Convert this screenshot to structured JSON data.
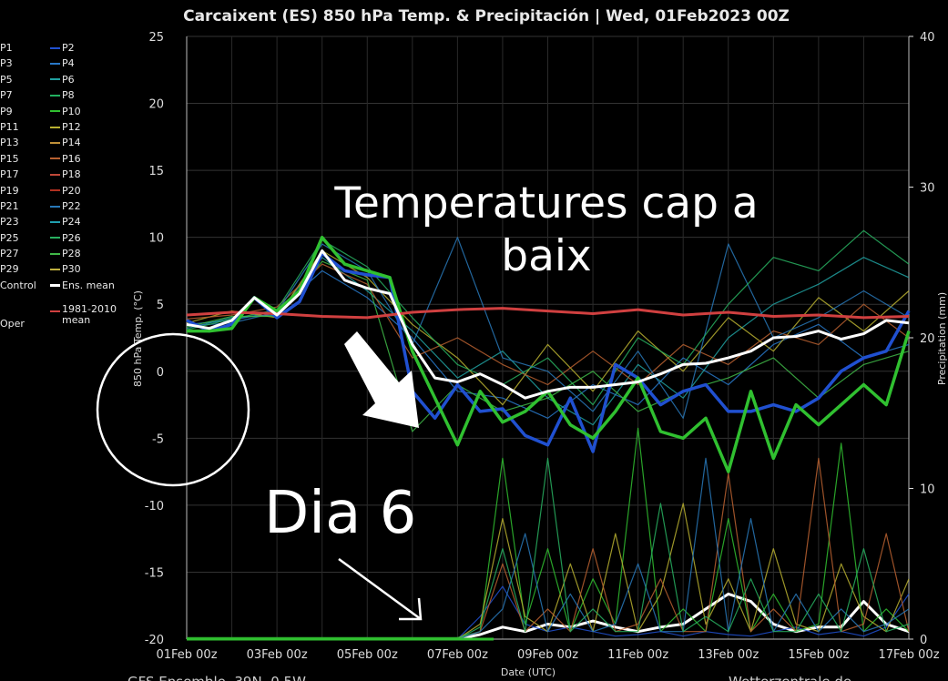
{
  "header": {
    "title": "Carcaixent  (ES)  850 hPa Temp. & Precipitación | Wed, 01Feb2023 00Z"
  },
  "footer": {
    "source_left": "GFS Ensemble, 39N, 0.5W",
    "source_right": "Wetterzentrale.de"
  },
  "legend": {
    "members": [
      {
        "left": "P1",
        "right": "P2",
        "left_color": "#1a3fb0",
        "right_color": "#2050d0"
      },
      {
        "left": "P3",
        "right": "P4",
        "left_color": "#1f64b8",
        "right_color": "#2878c8"
      },
      {
        "left": "P5",
        "right": "P6",
        "left_color": "#1a8a9a",
        "right_color": "#20a0a0"
      },
      {
        "left": "P7",
        "right": "P8",
        "left_color": "#1a9a70",
        "right_color": "#22b060"
      },
      {
        "left": "P9",
        "right": "P10",
        "left_color": "#20b040",
        "right_color": "#30c030"
      },
      {
        "left": "P11",
        "right": "P12",
        "left_color": "#90b030",
        "right_color": "#b8b030"
      },
      {
        "left": "P13",
        "right": "P14",
        "left_color": "#b09030",
        "right_color": "#c09038"
      },
      {
        "left": "P15",
        "right": "P16",
        "left_color": "#b07030",
        "right_color": "#b86030"
      },
      {
        "left": "P17",
        "right": "P18",
        "left_color": "#b04030",
        "right_color": "#c04838"
      },
      {
        "left": "P19",
        "right": "P20",
        "left_color": "#a83020",
        "right_color": "#b03020"
      },
      {
        "left": "P21",
        "right": "P22",
        "left_color": "#2060a0",
        "right_color": "#2878b8"
      },
      {
        "left": "P23",
        "right": "P24",
        "left_color": "#2088a0",
        "right_color": "#20a0b0"
      },
      {
        "left": "P25",
        "right": "P26",
        "left_color": "#20a070",
        "right_color": "#28b060"
      },
      {
        "left": "P27",
        "right": "P28",
        "left_color": "#30a850",
        "right_color": "#40b848"
      },
      {
        "left": "P29",
        "right": "P30",
        "left_color": "#a0b040",
        "right_color": "#c0b040"
      }
    ],
    "control_label": "Control",
    "ens_mean_label": "Ens. mean",
    "climo_label_line1": "1981-2010",
    "climo_label_line2": "mean",
    "oper_label": "Oper",
    "ens_mean_color": "#ffffff",
    "climo_color": "#d04040"
  },
  "annotations": {
    "headline": "Temperatures  cap a baix",
    "headline_line1": "Temperatures  cap a",
    "headline_line2": "baix",
    "dia6": "Dia 6"
  },
  "chart_data": {
    "type": "line",
    "title": "Carcaixent  (ES)  850 hPa Temp. & Precipitación | Wed, 01Feb2023 00Z",
    "xlabel": "Date (UTC)",
    "ylabel": "850 hPa Temp. (°C)",
    "y2label": "Precipitation (mm)",
    "ylim": [
      -20,
      25
    ],
    "y2lim": [
      0,
      40
    ],
    "y_ticks": [
      25,
      20,
      15,
      10,
      5,
      0,
      -5,
      -10,
      -15,
      -20
    ],
    "y2_ticks": [
      40,
      30,
      20,
      10,
      0
    ],
    "x_ticks": [
      "01Feb 00z",
      "03Feb 00z",
      "05Feb 00z",
      "07Feb 00z",
      "09Feb 00z",
      "11Feb 00z",
      "13Feb 00z",
      "15Feb 00z",
      "17Feb 00z"
    ],
    "xlim_days": [
      0,
      16
    ],
    "grid": true,
    "series": [
      {
        "name": "1981-2010 mean",
        "color": "#d04040",
        "x": [
          0,
          1,
          2,
          3,
          4,
          5,
          6,
          7,
          8,
          9,
          10,
          11,
          12,
          13,
          14,
          15,
          16
        ],
        "y": [
          4.2,
          4.4,
          4.3,
          4.1,
          4.0,
          4.4,
          4.6,
          4.7,
          4.5,
          4.3,
          4.6,
          4.2,
          4.4,
          4.1,
          4.2,
          4.0,
          4.1
        ]
      },
      {
        "name": "Ens. mean",
        "color": "#ffffff",
        "x": [
          0,
          0.5,
          1,
          1.5,
          2,
          2.5,
          3,
          3.5,
          4,
          4.5,
          5,
          5.5,
          6,
          6.5,
          7,
          7.5,
          8,
          8.5,
          9,
          9.5,
          10,
          10.5,
          11,
          11.5,
          12,
          12.5,
          13,
          13.5,
          14,
          14.5,
          15,
          15.5,
          16
        ],
        "y": [
          3.5,
          3.2,
          3.8,
          5.5,
          4.2,
          5.8,
          9.0,
          6.8,
          6.2,
          5.8,
          2.0,
          -0.5,
          -0.8,
          -0.2,
          -1.0,
          -2.0,
          -1.5,
          -1.2,
          -1.2,
          -1.0,
          -0.8,
          -0.2,
          0.5,
          0.6,
          1.0,
          1.5,
          2.5,
          2.6,
          3.0,
          2.4,
          2.8,
          3.8,
          3.6
        ]
      },
      {
        "name": "P2",
        "color": "#2050d0",
        "x": [
          0,
          0.5,
          1,
          1.5,
          2,
          2.5,
          3,
          3.5,
          4,
          4.5,
          5,
          5.5,
          6,
          6.5,
          7,
          7.5,
          8,
          8.5,
          9,
          9.5,
          10,
          10.5,
          11,
          11.5,
          12,
          12.5,
          13,
          13.5,
          14,
          14.5,
          15,
          15.5,
          16
        ],
        "y": [
          3.8,
          3.0,
          3.5,
          5.5,
          4.0,
          5.2,
          8.8,
          7.5,
          7.2,
          7.0,
          -1.5,
          -3.5,
          -1.0,
          -3.0,
          -2.8,
          -4.8,
          -5.5,
          -2.0,
          -6.0,
          0.5,
          -0.5,
          -2.5,
          -1.5,
          -1.0,
          -3.0,
          -3.0,
          -2.5,
          -3.0,
          -2.0,
          0.0,
          1.0,
          1.5,
          4.5
        ]
      },
      {
        "name": "P10",
        "color": "#30c030",
        "x": [
          0,
          0.5,
          1,
          1.5,
          2,
          2.5,
          3,
          3.5,
          4,
          4.5,
          5,
          5.5,
          6,
          6.5,
          7,
          7.5,
          8,
          8.5,
          9,
          9.5,
          10,
          10.5,
          11,
          11.5,
          12,
          12.5,
          13,
          13.5,
          14,
          14.5,
          15,
          15.5,
          16
        ],
        "y": [
          3.0,
          3.0,
          3.2,
          5.5,
          4.5,
          6.0,
          10.0,
          8.0,
          7.5,
          7.0,
          1.5,
          -2.0,
          -5.5,
          -1.5,
          -3.8,
          -3.0,
          -1.5,
          -4.0,
          -5.0,
          -3.0,
          -0.5,
          -4.5,
          -5.0,
          -3.5,
          -7.5,
          -1.5,
          -6.5,
          -2.5,
          -4.0,
          -2.5,
          -1.0,
          -2.5,
          3.0
        ]
      },
      {
        "name": "P4",
        "color": "#2878c8",
        "x": [
          0,
          1,
          2,
          3,
          4,
          5,
          6,
          7,
          8,
          9,
          10,
          11,
          12,
          13,
          14,
          15,
          16
        ],
        "y": [
          3.5,
          3.8,
          4.5,
          7.5,
          5.5,
          2.5,
          -1.5,
          -2.0,
          -3.5,
          -1.0,
          -2.5,
          1.0,
          -1.0,
          2.0,
          3.5,
          1.0,
          2.0
        ]
      },
      {
        "name": "P6",
        "color": "#20a0a0",
        "x": [
          0,
          1,
          2,
          3,
          4,
          5,
          6,
          7,
          8,
          9,
          10,
          11,
          12,
          13,
          14,
          15,
          16
        ],
        "y": [
          3.2,
          4.0,
          4.2,
          8.5,
          6.0,
          3.0,
          -0.5,
          1.5,
          -2.0,
          -4.0,
          0.5,
          -2.0,
          2.5,
          5.0,
          6.5,
          8.5,
          7.0
        ]
      },
      {
        "name": "P12",
        "color": "#b8b030",
        "x": [
          0,
          1,
          2,
          3,
          4,
          5,
          6,
          7,
          8,
          9,
          10,
          11,
          12,
          13,
          14,
          15,
          16
        ],
        "y": [
          3.6,
          4.5,
          4.0,
          9.0,
          7.0,
          3.5,
          1.0,
          -2.5,
          2.0,
          -1.5,
          3.0,
          0.0,
          4.0,
          1.5,
          5.5,
          3.0,
          6.0
        ]
      },
      {
        "name": "P16",
        "color": "#b86030",
        "x": [
          0,
          1,
          2,
          3,
          4,
          5,
          6,
          7,
          8,
          9,
          10,
          11,
          12,
          13,
          14,
          15,
          16
        ],
        "y": [
          3.9,
          4.2,
          4.8,
          8.0,
          6.5,
          1.0,
          2.5,
          0.5,
          -1.0,
          1.5,
          -1.0,
          2.0,
          0.5,
          3.0,
          2.0,
          5.0,
          2.5
        ]
      },
      {
        "name": "P22",
        "color": "#2878b8",
        "x": [
          0,
          1,
          2,
          3,
          4,
          5,
          6,
          7,
          8,
          9,
          10,
          11,
          12,
          13,
          14,
          15,
          16
        ],
        "y": [
          3.4,
          3.6,
          4.4,
          9.5,
          7.5,
          2.0,
          10.0,
          1.0,
          0.0,
          -3.0,
          1.5,
          -3.5,
          9.5,
          2.5,
          4.0,
          6.0,
          4.0
        ]
      },
      {
        "name": "P26",
        "color": "#28b060",
        "x": [
          0,
          1,
          2,
          3,
          4,
          5,
          6,
          7,
          8,
          9,
          10,
          11,
          12,
          13,
          14,
          15,
          16
        ],
        "y": [
          3.1,
          3.9,
          4.6,
          9.8,
          7.8,
          4.0,
          0.5,
          -1.0,
          1.0,
          -2.5,
          2.5,
          0.5,
          5.0,
          8.5,
          7.5,
          10.5,
          8.0
        ]
      },
      {
        "name": "P28",
        "color": "#40b848",
        "x": [
          0,
          1,
          2,
          3,
          4,
          5,
          6,
          7,
          8,
          9,
          10,
          11,
          12,
          13,
          14,
          15,
          16
        ],
        "y": [
          3.3,
          4.1,
          4.1,
          8.2,
          6.8,
          -4.5,
          -1.0,
          -3.0,
          -2.0,
          0.0,
          -3.0,
          -1.5,
          -0.5,
          1.0,
          -2.0,
          0.5,
          1.5
        ]
      },
      {
        "name": "Precip ens. mean",
        "color": "#ffffff",
        "axis": "y2",
        "x": [
          0,
          1,
          2,
          3,
          4,
          5,
          6,
          6.5,
          7,
          7.5,
          8,
          8.5,
          9,
          9.5,
          10,
          10.5,
          11,
          11.5,
          12,
          12.5,
          13,
          13.5,
          14,
          14.5,
          15,
          15.5,
          16
        ],
        "y": [
          0,
          0,
          0,
          0,
          0,
          0,
          0,
          0.3,
          0.8,
          0.5,
          1.0,
          0.8,
          1.2,
          0.8,
          0.5,
          0.8,
          1.0,
          2.0,
          3.0,
          2.5,
          1.0,
          0.5,
          0.8,
          0.8,
          2.5,
          1.0,
          0.5
        ]
      },
      {
        "name": "P2 precip",
        "color": "#2050d0",
        "axis": "y2",
        "x": [
          0,
          1,
          2,
          3,
          4,
          5,
          6,
          6.5,
          7,
          7.5,
          8,
          8.5,
          9,
          9.5,
          10,
          10.5,
          11,
          11.5,
          12,
          12.5,
          13,
          13.5,
          14,
          14.5,
          15,
          15.5,
          16
        ],
        "y": [
          0,
          0,
          0,
          0,
          0,
          0,
          0,
          1.5,
          3.5,
          1.0,
          0.5,
          0.8,
          0.5,
          0.2,
          0.3,
          0.5,
          0.2,
          0.5,
          0.3,
          0.2,
          0.5,
          0.8,
          0.3,
          0.5,
          0.2,
          0.8,
          3.0
        ]
      },
      {
        "name": "P10 precip",
        "color": "#30c030",
        "axis": "y2",
        "x": [
          0,
          1,
          2,
          3,
          4,
          5,
          6,
          6.5,
          7,
          7.5,
          8,
          8.5,
          9,
          9.5,
          10,
          10.5,
          11,
          11.5,
          12,
          12.5,
          13,
          13.5,
          14,
          14.5,
          15,
          15.5,
          16
        ],
        "y": [
          0.1,
          0.1,
          0.1,
          0.1,
          0.1,
          0.1,
          0.1,
          0.5,
          12,
          1.0,
          6.0,
          0.5,
          4.0,
          1.0,
          14,
          0.5,
          2.0,
          0.5,
          8.0,
          0.5,
          3.0,
          0.5,
          1.0,
          13,
          0.5,
          2.0,
          0.5
        ]
      },
      {
        "name": "P12 precip",
        "color": "#b8b030",
        "axis": "y2",
        "x": [
          0,
          1,
          2,
          3,
          4,
          5,
          6,
          6.5,
          7,
          7.5,
          8,
          8.5,
          9,
          9.5,
          10,
          10.5,
          11,
          11.5,
          12,
          12.5,
          13,
          13.5,
          14,
          14.5,
          15,
          15.5,
          16
        ],
        "y": [
          0,
          0,
          0,
          0,
          0,
          0,
          0,
          1.0,
          8.0,
          1.5,
          0.5,
          5.0,
          0.5,
          7.0,
          0.5,
          3.0,
          9.0,
          1.0,
          4.0,
          0.5,
          6.0,
          1.0,
          0.5,
          5.0,
          1.5,
          0.5,
          4.0
        ]
      },
      {
        "name": "P16 precip",
        "color": "#b86030",
        "axis": "y2",
        "x": [
          0,
          1,
          2,
          3,
          4,
          5,
          6,
          6.5,
          7,
          7.5,
          8,
          8.5,
          9,
          9.5,
          10,
          10.5,
          11,
          11.5,
          12,
          12.5,
          13,
          13.5,
          14,
          14.5,
          15,
          15.5,
          16
        ],
        "y": [
          0,
          0,
          0,
          0,
          0,
          0,
          0,
          0.5,
          5.0,
          0.5,
          2.0,
          0.5,
          6.0,
          0.5,
          1.0,
          4.0,
          0.5,
          0.5,
          11,
          0.5,
          2.0,
          0.5,
          12,
          0.5,
          1.0,
          7.0,
          0.5
        ]
      },
      {
        "name": "P22 precip",
        "color": "#2878b8",
        "axis": "y2",
        "x": [
          0,
          1,
          2,
          3,
          4,
          5,
          6,
          6.5,
          7,
          7.5,
          8,
          8.5,
          9,
          9.5,
          10,
          10.5,
          11,
          11.5,
          12,
          12.5,
          13,
          13.5,
          14,
          14.5,
          15,
          15.5,
          16
        ],
        "y": [
          0,
          0,
          0,
          0,
          0,
          0,
          0,
          0.5,
          2.0,
          7.0,
          0.5,
          3.0,
          0.5,
          1.0,
          5.0,
          0.5,
          0.5,
          12,
          0.5,
          8.0,
          0.5,
          3.0,
          0.5,
          2.0,
          0.5,
          1.0,
          2.0
        ]
      },
      {
        "name": "P26 precip",
        "color": "#28b060",
        "axis": "y2",
        "x": [
          0,
          1,
          2,
          3,
          4,
          5,
          6,
          6.5,
          7,
          7.5,
          8,
          8.5,
          9,
          9.5,
          10,
          10.5,
          11,
          11.5,
          12,
          12.5,
          13,
          13.5,
          14,
          14.5,
          15,
          15.5,
          16
        ],
        "y": [
          0,
          0,
          0,
          0,
          0,
          0,
          0,
          0.8,
          6.0,
          0.5,
          12,
          0.5,
          2.0,
          0.5,
          0.5,
          9.0,
          0.5,
          1.5,
          0.5,
          4.0,
          0.5,
          0.5,
          3.0,
          0.5,
          6.0,
          0.5,
          1.0
        ]
      }
    ]
  }
}
